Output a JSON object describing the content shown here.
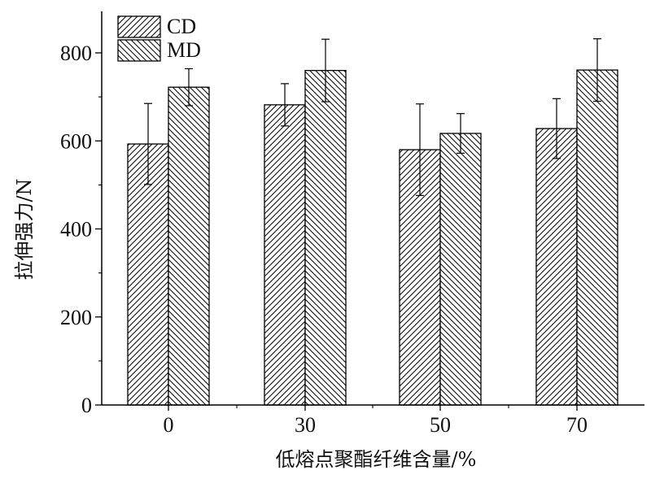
{
  "chart_data": {
    "type": "bar",
    "title": "",
    "xlabel": "低熔点聚酯纤维含量/%",
    "ylabel": "拉伸强力/N",
    "categories": [
      "0",
      "30",
      "50",
      "70"
    ],
    "ylim": [
      0,
      800
    ],
    "yticks": [
      "0",
      "200",
      "400",
      "600",
      "800"
    ],
    "grid": false,
    "legend_position": "top-left",
    "series": [
      {
        "name": "CD",
        "values": [
          593,
          682,
          580,
          628
        ],
        "errors": [
          92,
          48,
          104,
          68
        ],
        "pattern": "forward-hatch"
      },
      {
        "name": "MD",
        "values": [
          722,
          760,
          617,
          761
        ],
        "errors": [
          42,
          71,
          45,
          71
        ],
        "pattern": "backward-hatch"
      }
    ],
    "colors": {
      "axis": "#000000",
      "bar_fill": "#ffffff",
      "hatch": "#000000"
    }
  }
}
